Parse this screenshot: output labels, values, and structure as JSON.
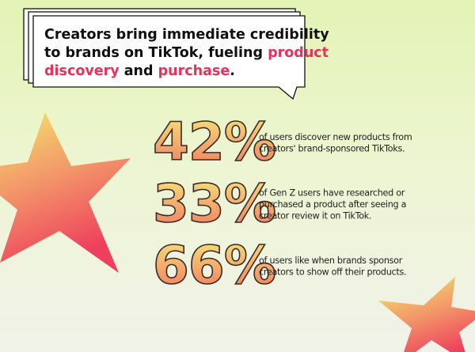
{
  "title_lines": [
    [
      {
        "text": "Creators bring immediate credibility",
        "highlight": false
      }
    ],
    [
      {
        "text": "to brands on TikTok, fueling ",
        "highlight": false
      },
      {
        "text": "product",
        "highlight": true
      }
    ],
    [
      {
        "text": "discovery",
        "highlight": true
      },
      {
        "text": " and ",
        "highlight": false
      },
      {
        "text": "purchase",
        "highlight": true
      },
      {
        "text": ".",
        "highlight": false
      }
    ]
  ],
  "stats": [
    {
      "figure": "42%",
      "lines": [
        "of users discover new products from",
        "creators' brand-sponsored TikToks."
      ]
    },
    {
      "figure": "33%",
      "lines": [
        "of Gen Z users have researched or",
        "purchased a product after seeing a",
        "creator review it on TikTok."
      ]
    },
    {
      "figure": "66%",
      "lines": [
        "of users like when brands sponsor",
        "creators to show off their products."
      ]
    }
  ]
}
